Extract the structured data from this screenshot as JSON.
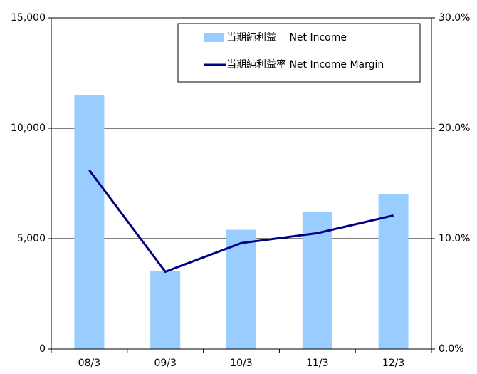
{
  "chart_data": {
    "type": "bar-line",
    "categories": [
      "08/3",
      "09/3",
      "10/3",
      "11/3",
      "12/3"
    ],
    "series": [
      {
        "name": "当期純利益　 Net Income",
        "color": "#99ccff",
        "type": "bar",
        "values": [
          11500,
          3550,
          5400,
          6200,
          7030
        ]
      },
      {
        "name": "当期純利益率 Net Income Margin",
        "color": "#000080",
        "type": "line",
        "axis": "y2",
        "values": [
          16.2,
          7.0,
          9.6,
          10.5,
          12.1
        ]
      }
    ],
    "ylim": [
      0,
      15000
    ],
    "yticks": [
      0,
      {
        "value": 5000,
        "label": "5,000"
      },
      {
        "value": 10000,
        "label": "10,000"
      },
      {
        "value": 15000,
        "label": "15,000"
      }
    ],
    "y2lim": [
      0,
      30
    ],
    "y2ticks": [
      {
        "value": 0,
        "label": "0.0%"
      },
      {
        "value": 10,
        "label": "10.0%"
      },
      {
        "value": 20,
        "label": "20.0%"
      },
      {
        "value": 30,
        "label": "30.0%"
      }
    ],
    "grid": true,
    "legend": "top-right"
  }
}
